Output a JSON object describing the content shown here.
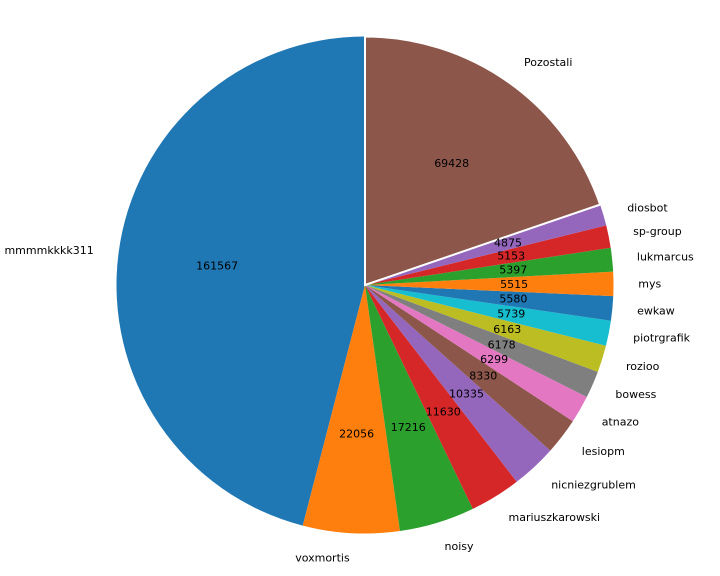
{
  "chart_data": {
    "type": "pie",
    "title": "",
    "start_angle": 90,
    "direction": "counterclockwise",
    "label_distance": 1.1,
    "value_distance": 0.6,
    "text_color": "#000000",
    "background": "#ffffff",
    "legend": false,
    "slices": [
      {
        "label": "mmmmkkkk311",
        "value": 161567,
        "color": "#1f77b4"
      },
      {
        "label": "voxmortis",
        "value": 22056,
        "color": "#ff7f0e"
      },
      {
        "label": "noisy",
        "value": 17216,
        "color": "#2ca02c"
      },
      {
        "label": "mariuszkarowski",
        "value": 11630,
        "color": "#d62728"
      },
      {
        "label": "nicniezgrublem",
        "value": 10335,
        "color": "#9467bd"
      },
      {
        "label": "lesiopm",
        "value": 8330,
        "color": "#8c564b"
      },
      {
        "label": "atnazo",
        "value": 6299,
        "color": "#e377c2"
      },
      {
        "label": "bowess",
        "value": 6178,
        "color": "#7f7f7f"
      },
      {
        "label": "rozioo",
        "value": 6163,
        "color": "#bcbd22"
      },
      {
        "label": "piotrgrafik",
        "value": 5739,
        "color": "#17becf"
      },
      {
        "label": "ewkaw",
        "value": 5580,
        "color": "#1f77b4"
      },
      {
        "label": "mys",
        "value": 5515,
        "color": "#ff7f0e"
      },
      {
        "label": "lukmarcus",
        "value": 5397,
        "color": "#2ca02c"
      },
      {
        "label": "sp-group",
        "value": 5153,
        "color": "#d62728"
      },
      {
        "label": "diosbot",
        "value": 4875,
        "color": "#9467bd"
      },
      {
        "label": "Pozostali",
        "value": 69428,
        "color": "#8c564b",
        "edge_color": "#ffffff",
        "edge_width": 2
      }
    ]
  }
}
